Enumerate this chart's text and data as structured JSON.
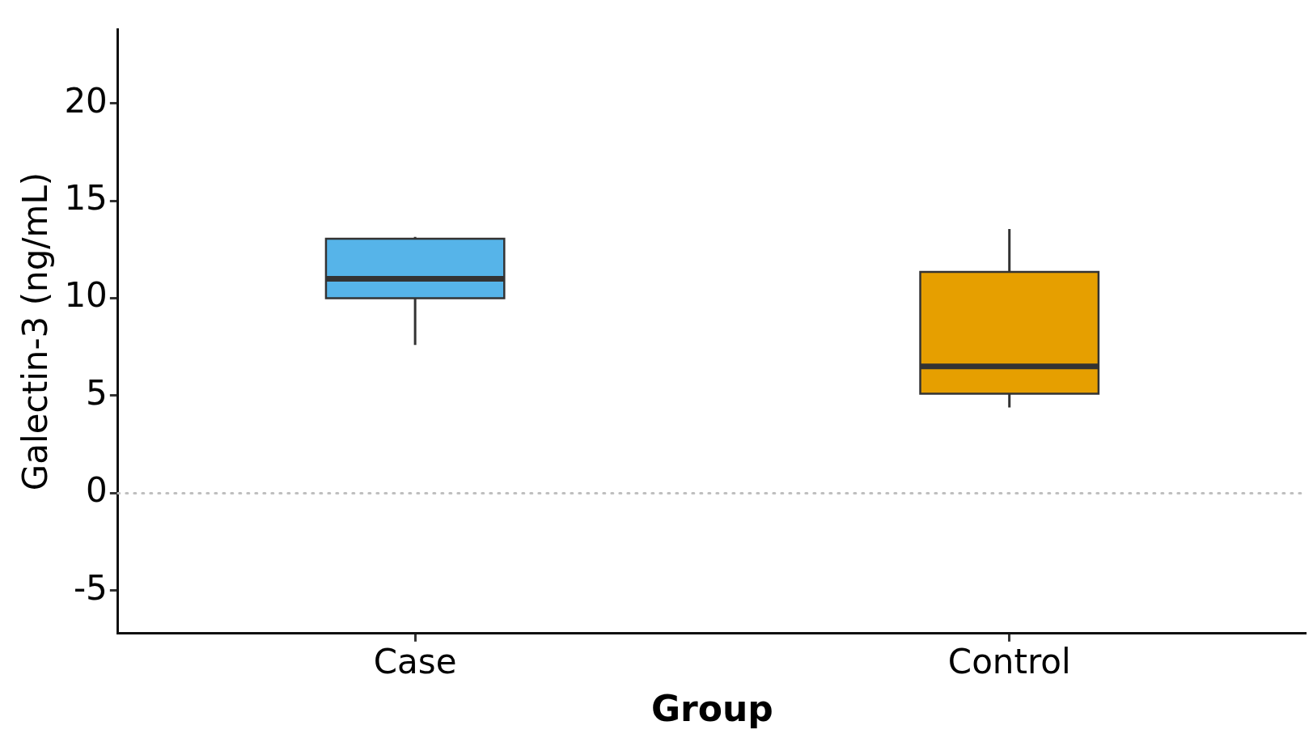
{
  "chart_data": {
    "type": "box",
    "xlabel": "Group",
    "ylabel": "Galectin-3 (ng/mL)",
    "categories": [
      "Case",
      "Control"
    ],
    "colors": [
      "#56b4e9",
      "#e69f00"
    ],
    "boxes": [
      {
        "low": 7.6,
        "q1": 10,
        "median": 11,
        "q3": 13.05,
        "high": 13.15
      },
      {
        "low": 4.4,
        "q1": 5.1,
        "median": 6.5,
        "q3": 11.35,
        "high": 13.55
      }
    ],
    "ylim": [
      -7.2,
      23.8
    ],
    "yticks": [
      -5,
      0,
      5,
      10,
      15,
      20
    ],
    "ref_lines": [
      {
        "axis": "y",
        "value": 0,
        "color": "#bfbfbf",
        "line_style": "dotted"
      }
    ],
    "grid": false,
    "legend": false
  }
}
